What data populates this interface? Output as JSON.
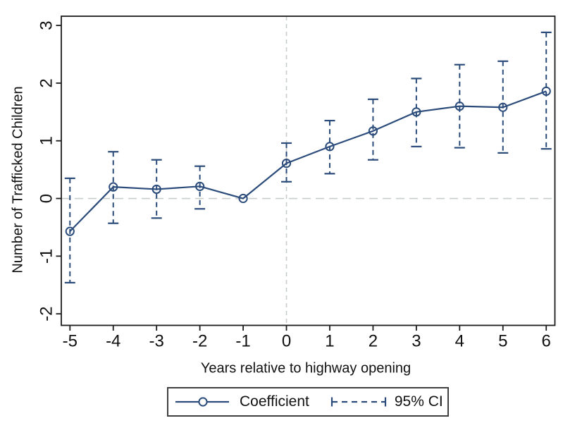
{
  "chart_data": {
    "type": "line",
    "subtype": "event-study coefficient plot with 95% confidence intervals",
    "title": "",
    "xlabel": "Years relative to highway opening",
    "ylabel": "Number of Trafficked Children",
    "x": [
      -5,
      -4,
      -3,
      -2,
      -1,
      0,
      1,
      2,
      3,
      4,
      5,
      6
    ],
    "series": [
      {
        "name": "Coefficient",
        "values": [
          -0.57,
          0.2,
          0.16,
          0.21,
          0.0,
          0.61,
          0.9,
          1.17,
          1.5,
          1.6,
          1.58,
          1.86
        ],
        "ci_high": [
          0.35,
          0.81,
          0.67,
          0.56,
          null,
          0.96,
          1.35,
          1.72,
          2.08,
          2.32,
          2.38,
          2.88
        ],
        "ci_low": [
          -1.46,
          -0.43,
          -0.34,
          -0.18,
          null,
          0.29,
          0.43,
          0.67,
          0.9,
          0.88,
          0.79,
          0.86
        ]
      }
    ],
    "x_ticks": [
      -5,
      -4,
      -3,
      -2,
      -1,
      0,
      1,
      2,
      3,
      4,
      5,
      6
    ],
    "y_ticks": [
      -2,
      -1,
      0,
      1,
      2,
      3
    ],
    "xlim": [
      -5.2,
      6.2
    ],
    "ylim": [
      -2.2,
      3.16
    ],
    "reference_line_x": 0,
    "reference_line_y": 0,
    "grid": false,
    "legend_position": "bottom",
    "legend": [
      {
        "label": "Coefficient",
        "glyph": "solid-line-with-circle-marker"
      },
      {
        "label": "95% CI",
        "glyph": "dashed-line-with-end-caps"
      }
    ],
    "colors": {
      "series": "#2b4c7a",
      "reference_line": "#c7cdc8",
      "axis": "#1c1c1c",
      "text": "#111111",
      "legend_border": "#404040",
      "background": "#ffffff"
    }
  }
}
